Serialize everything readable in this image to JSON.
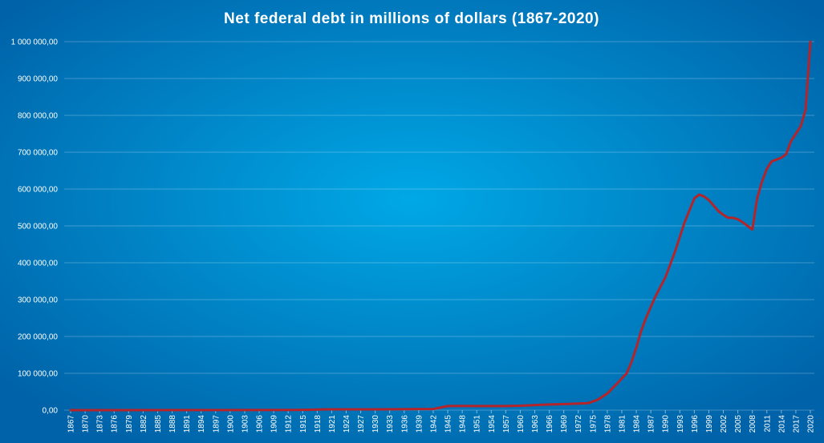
{
  "chart_data": {
    "type": "line",
    "title": "Net federal debt in millions  of dollars  (1867-2020)",
    "color": "#b3242b",
    "grid": true,
    "x": [
      1867,
      1900,
      1914,
      1920,
      1930,
      1939,
      1942,
      1945,
      1948,
      1951,
      1957,
      1960,
      1965,
      1970,
      1974,
      1976,
      1978,
      1980,
      1982,
      1983,
      1984,
      1985,
      1986,
      1987,
      1988,
      1990,
      1992,
      1994,
      1996,
      1997,
      1998,
      1999,
      2000,
      2001,
      2002,
      2003,
      2004,
      2005,
      2006,
      2007,
      2008,
      2009,
      2010,
      2011,
      2012,
      2013,
      2014,
      2015,
      2016,
      2017,
      2018,
      2019,
      2020
    ],
    "values": [
      76,
      268,
      336,
      2200,
      2200,
      3150,
      3000,
      11000,
      11500,
      11000,
      11000,
      12000,
      15000,
      17000,
      19000,
      28000,
      45000,
      72000,
      100000,
      130000,
      170000,
      215000,
      250000,
      280000,
      310000,
      360000,
      430000,
      510000,
      575000,
      585000,
      580000,
      570000,
      555000,
      540000,
      530000,
      522000,
      522000,
      518000,
      510000,
      500000,
      490000,
      575000,
      620000,
      655000,
      675000,
      680000,
      685000,
      695000,
      730000,
      750000,
      770000,
      815000,
      1000000
    ],
    "xlim": [
      1867,
      2020
    ],
    "xticks": [
      1867,
      1870,
      1873,
      1876,
      1879,
      1882,
      1885,
      1888,
      1891,
      1894,
      1897,
      1900,
      1903,
      1906,
      1909,
      1912,
      1915,
      1918,
      1921,
      1924,
      1927,
      1930,
      1933,
      1936,
      1939,
      1942,
      1945,
      1948,
      1951,
      1954,
      1957,
      1960,
      1963,
      1966,
      1969,
      1972,
      1975,
      1978,
      1981,
      1984,
      1987,
      1990,
      1993,
      1996,
      1999,
      2002,
      2005,
      2008,
      2011,
      2014,
      2017,
      2020
    ],
    "ylim": [
      0,
      1000000
    ],
    "yticks": [
      {
        "value": 0,
        "label": "0,00"
      },
      {
        "value": 100000,
        "label": "100 000,00"
      },
      {
        "value": 200000,
        "label": "200 000,00"
      },
      {
        "value": 300000,
        "label": "300 000,00"
      },
      {
        "value": 400000,
        "label": "400 000,00"
      },
      {
        "value": 500000,
        "label": "500 000,00"
      },
      {
        "value": 600000,
        "label": "600 000,00"
      },
      {
        "value": 700000,
        "label": "700 000,00"
      },
      {
        "value": 800000,
        "label": "800 000,00"
      },
      {
        "value": 900000,
        "label": "900 000,00"
      },
      {
        "value": 1000000,
        "label": "1 000 000,00"
      }
    ]
  }
}
